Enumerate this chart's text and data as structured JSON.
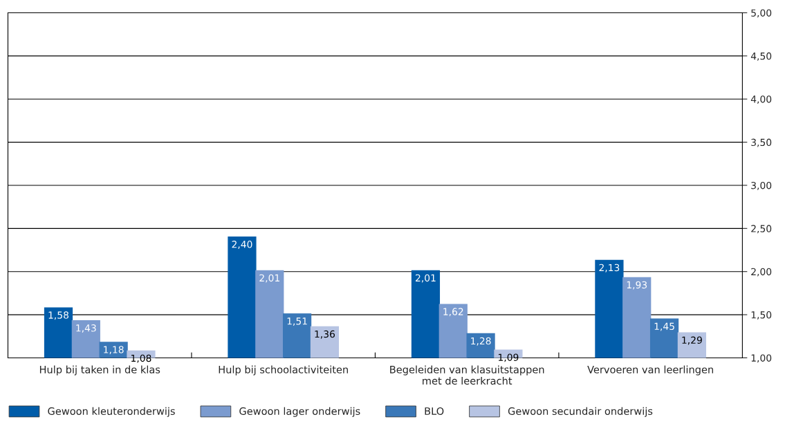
{
  "chart_data": {
    "type": "bar",
    "categories": [
      "Hulp bij taken in de klas",
      "Hulp bij schoolactiviteiten",
      "Begeleiden van klasuitstappen\nmet de leerkracht",
      "Vervoeren van leerlingen"
    ],
    "series": [
      {
        "name": "Gewoon kleuteronderwijs",
        "color": "#005ca9",
        "values": [
          1.58,
          2.4,
          2.01,
          2.13
        ],
        "value_labels": [
          "1,58",
          "2,40",
          "2,01",
          "2,13"
        ]
      },
      {
        "name": "Gewoon lager onderwijs",
        "color": "#7b9bcf",
        "values": [
          1.43,
          2.01,
          1.62,
          1.93
        ],
        "value_labels": [
          "1,43",
          "2,01",
          "1,62",
          "1,93"
        ]
      },
      {
        "name": "BLO",
        "color": "#3a78b8",
        "values": [
          1.18,
          1.51,
          1.28,
          1.45
        ],
        "value_labels": [
          "1,18",
          "1,51",
          "1,28",
          "1,45"
        ]
      },
      {
        "name": "Gewoon secundair onderwijs",
        "color": "#b7c4e3",
        "values": [
          1.08,
          1.36,
          1.09,
          1.29
        ],
        "value_labels": [
          "1,08",
          "1,36",
          "1,09",
          "1,29"
        ]
      }
    ],
    "ylim": [
      1,
      5
    ],
    "yticks": [
      {
        "value": 1,
        "label": "1,00"
      },
      {
        "value": 1.5,
        "label": "1,50"
      },
      {
        "value": 2,
        "label": "2,00"
      },
      {
        "value": 2.5,
        "label": "2,50"
      },
      {
        "value": 3,
        "label": "3,00"
      },
      {
        "value": 3.5,
        "label": "3,50"
      },
      {
        "value": 4,
        "label": "4,00"
      },
      {
        "value": 4.5,
        "label": "4,50"
      },
      {
        "value": 5,
        "label": "5,00"
      }
    ],
    "grid": "y",
    "legend": "bottom"
  }
}
